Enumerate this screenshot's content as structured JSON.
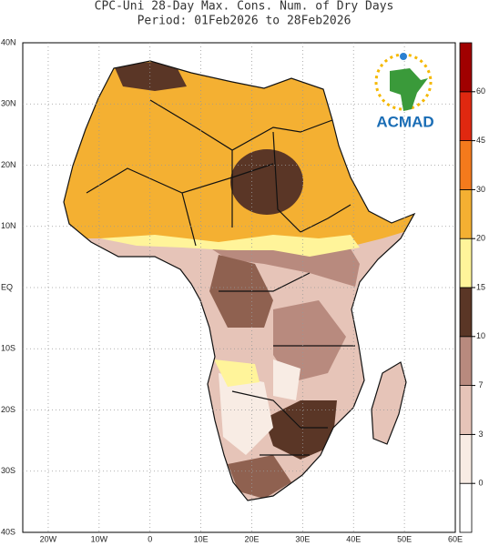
{
  "title": [
    "CPC-Uni 28-Day Max. Cons. Num. of Dry Days",
    "Period: 01Feb2026 to 28Feb2026"
  ],
  "x_labels": [
    "20W",
    "10W",
    "0",
    "10E",
    "20E",
    "30E",
    "40E",
    "50E",
    "60E"
  ],
  "y_labels": [
    "40N",
    "30N",
    "20N",
    "10N",
    "EQ",
    "10S",
    "20S",
    "30S",
    "40S"
  ],
  "colorbar": {
    "levels": [
      0,
      3,
      7,
      10,
      15,
      20,
      30,
      45,
      60
    ],
    "colors": [
      "#ffffff",
      "#f8ece4",
      "#e6c4b8",
      "#b88a7e",
      "#5a3626",
      "#fff49a",
      "#f4b032",
      "#f47a1c",
      "#e02810",
      "#a00000"
    ]
  },
  "logo": "ACMAD"
}
